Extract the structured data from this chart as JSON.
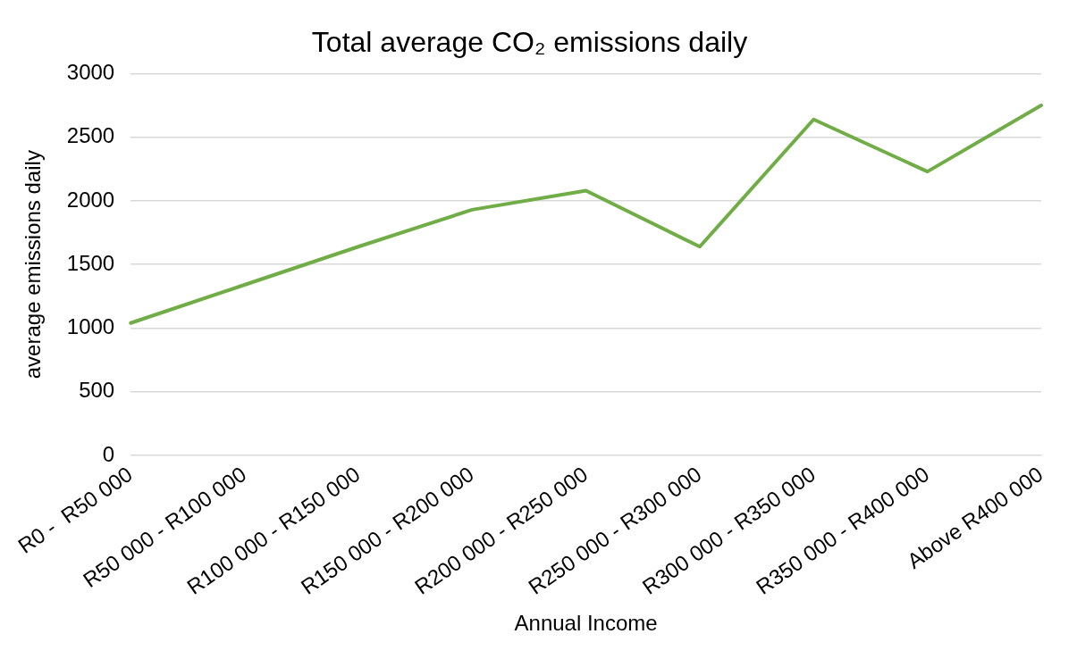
{
  "chart_data": {
    "type": "line",
    "title": "Total average CO₂ emissions daily",
    "xlabel": "Annual Income",
    "ylabel": "average emissions daily",
    "categories": [
      "R0 -  R50 000",
      "R50 000 - R100 000",
      "R100 000 - R150 000",
      "R150 000 - R200 000",
      "R200 000 - R250 000",
      "R250 000 - R300 000",
      "R300 000 - R350 000",
      "R350 000 - R400 000",
      "Above R400 000"
    ],
    "series": [
      {
        "color": "#70ad47",
        "values": [
          1040,
          1340,
          1640,
          1930,
          2080,
          1640,
          2640,
          2230,
          2750
        ]
      }
    ],
    "ylim": [
      0,
      3000
    ],
    "yticks": [
      0,
      500,
      1000,
      1500,
      2000,
      2500,
      3000
    ],
    "grid": "y",
    "legend": false,
    "marker": "none",
    "line_style": "solid"
  }
}
